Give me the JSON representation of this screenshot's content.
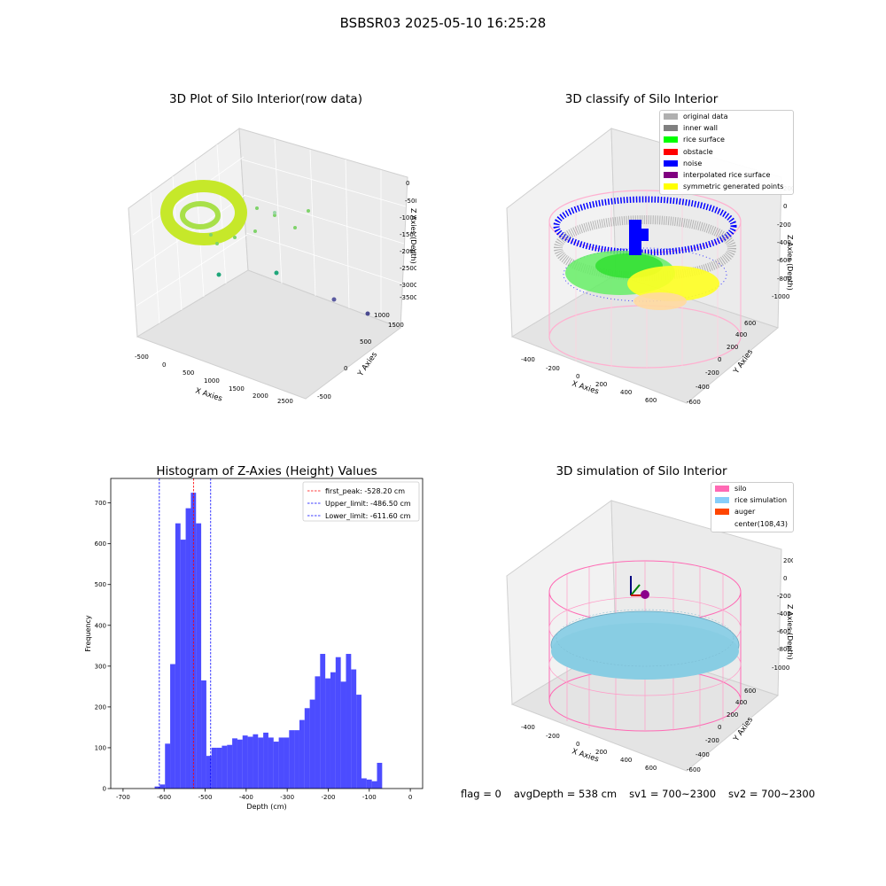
{
  "suptitle": "BSBSR03 2025-05-10 16:25:28",
  "panels": {
    "raw3d": {
      "title": "3D Plot of Silo Interior(row data)",
      "x_label": "X Axies",
      "y_label": "Y Axies",
      "z_label": "Z Axies (Depth)",
      "x_ticks": [
        "-500",
        "0",
        "500",
        "1000",
        "1500",
        "2000",
        "2500"
      ],
      "y_ticks": [
        "-500",
        "0",
        "500",
        "1000",
        "1500"
      ],
      "z_ticks": [
        "0",
        "-500",
        "-1000",
        "-1500",
        "-2000",
        "-2500",
        "-3000",
        "-3500"
      ]
    },
    "classify3d": {
      "title": "3D classify of Silo Interior",
      "x_label": "X Axies",
      "y_label": "Y Axies",
      "z_label": "Z Axies (Depth)",
      "x_ticks": [
        "-400",
        "-200",
        "0",
        "200",
        "400",
        "600"
      ],
      "y_ticks": [
        "600",
        "400",
        "200",
        "0",
        "-200",
        "-400",
        "-600"
      ],
      "z_ticks": [
        "200",
        "0",
        "-200",
        "-400",
        "-600",
        "-800",
        "-1000"
      ],
      "legend": [
        {
          "label": "original data",
          "color": "#b0b0b0"
        },
        {
          "label": "inner wall",
          "color": "#808080"
        },
        {
          "label": "rice surface",
          "color": "#00ff00"
        },
        {
          "label": "obstacle",
          "color": "#ff0000"
        },
        {
          "label": "noise",
          "color": "#0000ff"
        },
        {
          "label": "interpolated rice surface",
          "color": "#800080"
        },
        {
          "label": "symmetric generated points",
          "color": "#ffff00"
        }
      ]
    },
    "simulation3d": {
      "title": "3D simulation of Silo Interior",
      "x_label": "X Axies",
      "y_label": "Y Axies",
      "z_label": "Z Axies (Depth)",
      "x_ticks": [
        "-400",
        "-200",
        "0",
        "200",
        "400",
        "600"
      ],
      "y_ticks": [
        "600",
        "400",
        "200",
        "0",
        "-200",
        "-400",
        "-600"
      ],
      "z_ticks": [
        "200",
        "0",
        "-200",
        "-400",
        "-600",
        "-800",
        "-1000"
      ],
      "legend": [
        {
          "label": "silo",
          "color": "#ff69b4"
        },
        {
          "label": "rice simulation",
          "color": "#87cefa"
        },
        {
          "label": "auger",
          "color": "#ff4500"
        },
        {
          "label": "center(108,43)",
          "color": ""
        }
      ]
    }
  },
  "footer": {
    "flag": "flag = 0",
    "avg_depth": "avgDepth = 538 cm",
    "sv1": "sv1 = 700~2300",
    "sv2": "sv2 = 700~2300"
  },
  "chart_data": {
    "type": "bar",
    "title": "Histogram of Z-Axies (Height) Values",
    "xlabel": "Depth (cm)",
    "ylabel": "Frequency",
    "xlim": [
      -730,
      30
    ],
    "ylim": [
      0,
      760
    ],
    "x_ticks": [
      -700,
      -600,
      -500,
      -400,
      -300,
      -200,
      -100,
      0
    ],
    "y_ticks": [
      0,
      100,
      200,
      300,
      400,
      500,
      600,
      700
    ],
    "bar_color": "#0000ff",
    "bin_width": 12.6,
    "bins": [
      {
        "x": -623,
        "value": 5
      },
      {
        "x": -610.4,
        "value": 10
      },
      {
        "x": -597.8,
        "value": 110
      },
      {
        "x": -585.2,
        "value": 305
      },
      {
        "x": -572.6,
        "value": 650
      },
      {
        "x": -560,
        "value": 610
      },
      {
        "x": -547.4,
        "value": 687
      },
      {
        "x": -534.8,
        "value": 725
      },
      {
        "x": -522.2,
        "value": 650
      },
      {
        "x": -509.6,
        "value": 265
      },
      {
        "x": -497,
        "value": 80
      },
      {
        "x": -484.4,
        "value": 100
      },
      {
        "x": -471.8,
        "value": 100
      },
      {
        "x": -459.2,
        "value": 105
      },
      {
        "x": -446.6,
        "value": 107
      },
      {
        "x": -434,
        "value": 123
      },
      {
        "x": -421.4,
        "value": 120
      },
      {
        "x": -408.8,
        "value": 130
      },
      {
        "x": -396.2,
        "value": 127
      },
      {
        "x": -383.6,
        "value": 133
      },
      {
        "x": -371,
        "value": 125
      },
      {
        "x": -358.4,
        "value": 137
      },
      {
        "x": -345.8,
        "value": 125
      },
      {
        "x": -333.2,
        "value": 115
      },
      {
        "x": -320.6,
        "value": 125
      },
      {
        "x": -308,
        "value": 125
      },
      {
        "x": -295.4,
        "value": 143
      },
      {
        "x": -282.8,
        "value": 143
      },
      {
        "x": -270.2,
        "value": 168
      },
      {
        "x": -257.6,
        "value": 197
      },
      {
        "x": -245,
        "value": 218
      },
      {
        "x": -232.4,
        "value": 275
      },
      {
        "x": -219.8,
        "value": 330
      },
      {
        "x": -207.2,
        "value": 270
      },
      {
        "x": -194.6,
        "value": 285
      },
      {
        "x": -182,
        "value": 322
      },
      {
        "x": -169.4,
        "value": 262
      },
      {
        "x": -156.8,
        "value": 330
      },
      {
        "x": -144.2,
        "value": 292
      },
      {
        "x": -131.6,
        "value": 230
      },
      {
        "x": -119,
        "value": 25
      },
      {
        "x": -106.4,
        "value": 22
      },
      {
        "x": -93.8,
        "value": 18
      },
      {
        "x": -81.2,
        "value": 63
      }
    ],
    "vlines": [
      {
        "x": -528.2,
        "color": "#ff0000",
        "label": "first_peak: -528.20 cm"
      },
      {
        "x": -486.5,
        "color": "#0000ff",
        "label": "Upper_limit: -486.50 cm"
      },
      {
        "x": -611.6,
        "color": "#0000ff",
        "label": "Lower_limit: -611.60 cm"
      }
    ]
  }
}
